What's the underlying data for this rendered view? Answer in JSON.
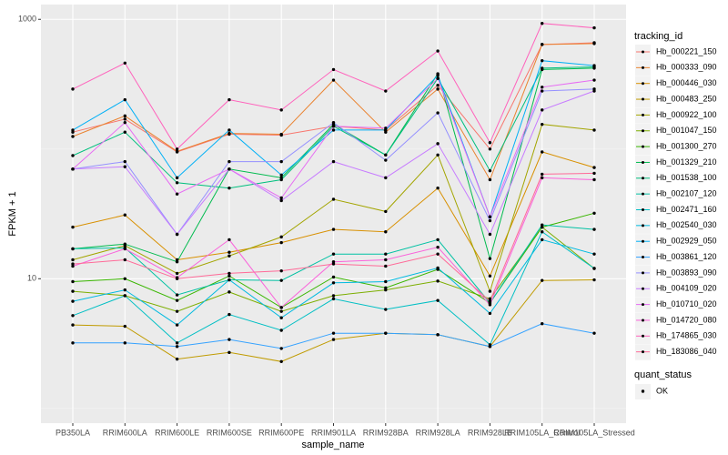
{
  "chart_data": {
    "type": "line",
    "log_y": true,
    "grid": true,
    "x_label": "sample_name",
    "y_label": "FPKM + 1",
    "categories": [
      "PB350LA",
      "RRIM600LA",
      "RRIM600LE",
      "RRIM600SE",
      "RRIM600PE",
      "RRIM901LA",
      "RRIM928BA",
      "RRIM928LA",
      "RRIM928LB",
      "RRIM105LA_Control",
      "RRIM105LA_Stressed"
    ],
    "ylim": [
      0.77,
      1300
    ],
    "yticks": [
      10,
      1000
    ],
    "legend_title": "tracking_id",
    "point_legend": {
      "title": "quant_status",
      "labels": [
        "OK"
      ],
      "color": "#000000"
    },
    "series": [
      {
        "name": "Hb_000221_150",
        "color": "#F8766D",
        "values": [
          135,
          170,
          95,
          130,
          128,
          150,
          140,
          310,
          100,
          640,
          660
        ]
      },
      {
        "name": "Hb_000333_090",
        "color": "#EA8331",
        "values": [
          125,
          180,
          96,
          132,
          130,
          340,
          135,
          290,
          58,
          640,
          650
        ]
      },
      {
        "name": "Hb_000446_030",
        "color": "#D89000",
        "values": [
          25,
          31,
          14,
          16,
          19,
          24,
          23,
          50,
          10.5,
          95,
          72
        ]
      },
      {
        "name": "Hb_000483_250",
        "color": "#C09B00",
        "values": [
          4.4,
          4.3,
          2.4,
          2.7,
          2.3,
          3.4,
          3.8,
          3.7,
          3.0,
          9.7,
          9.8
        ]
      },
      {
        "name": "Hb_000922_100",
        "color": "#A3A500",
        "values": [
          14,
          18,
          11,
          15,
          21,
          41,
          33,
          90,
          8,
          155,
          140
        ]
      },
      {
        "name": "Hb_001047_150",
        "color": "#7CAE00",
        "values": [
          8,
          7.4,
          5.6,
          7.9,
          5.6,
          7.4,
          8.2,
          9.6,
          7,
          25,
          12
        ]
      },
      {
        "name": "Hb_001300_270",
        "color": "#39B600",
        "values": [
          9.5,
          10,
          6.8,
          10.5,
          6,
          10.3,
          8.5,
          11.8,
          6.5,
          25,
          32
        ]
      },
      {
        "name": "Hb_001329_210",
        "color": "#00BB4E",
        "values": [
          17,
          18.5,
          13.5,
          70,
          60,
          155,
          90,
          380,
          14.3,
          410,
          420
        ]
      },
      {
        "name": "Hb_001538_100",
        "color": "#00BF7D",
        "values": [
          89,
          135,
          55,
          50,
          58,
          150,
          90,
          350,
          68,
          420,
          430
        ]
      },
      {
        "name": "Hb_002107_120",
        "color": "#00C1A3",
        "values": [
          17,
          17.3,
          7.5,
          9.8,
          9.7,
          15.5,
          15.5,
          20,
          6.5,
          26,
          24
        ]
      },
      {
        "name": "Hb_002471_160",
        "color": "#00BFC4",
        "values": [
          5.2,
          7.4,
          3.2,
          5.3,
          4,
          7,
          5.8,
          6.8,
          3.1,
          23,
          12
        ]
      },
      {
        "name": "Hb_002540_030",
        "color": "#00BAE0",
        "values": [
          6.7,
          8.2,
          4.4,
          9.8,
          5,
          9.3,
          9.5,
          12.1,
          5.4,
          20,
          15.5
        ]
      },
      {
        "name": "Hb_002929_050",
        "color": "#00B0F6",
        "values": [
          140,
          240,
          60,
          140,
          63,
          140,
          140,
          370,
          30,
          480,
          440
        ]
      },
      {
        "name": "Hb_003861_120",
        "color": "#35A2FF",
        "values": [
          3.2,
          3.2,
          3.0,
          3.4,
          2.9,
          3.8,
          3.8,
          3.7,
          3.0,
          4.5,
          3.8
        ]
      },
      {
        "name": "Hb_003893_090",
        "color": "#9590FF",
        "values": [
          70,
          80,
          22,
          80,
          80,
          160,
          82,
          190,
          28,
          280,
          290
        ]
      },
      {
        "name": "Hb_004109_020",
        "color": "#C77CFF",
        "values": [
          70,
          73,
          22,
          70,
          40,
          80,
          60,
          110,
          22,
          200,
          280
        ]
      },
      {
        "name": "Hb_010710_020",
        "color": "#E76BF3",
        "values": [
          70,
          160,
          45,
          70,
          42,
          150,
          145,
          350,
          30,
          300,
          340
        ]
      },
      {
        "name": "Hb_014720_080",
        "color": "#FA62DB",
        "values": [
          12.5,
          17,
          10.2,
          20,
          6,
          13.5,
          14,
          17.5,
          6.3,
          60,
          58
        ]
      },
      {
        "name": "Hb_174865_030",
        "color": "#FF62BC",
        "values": [
          290,
          460,
          100,
          240,
          200,
          410,
          280,
          570,
          112,
          930,
          860
        ]
      },
      {
        "name": "Hb_183086_040",
        "color": "#FF6A98",
        "values": [
          13,
          14,
          10,
          11,
          11.5,
          13,
          12.5,
          15.5,
          6.7,
          64,
          65
        ]
      }
    ]
  }
}
